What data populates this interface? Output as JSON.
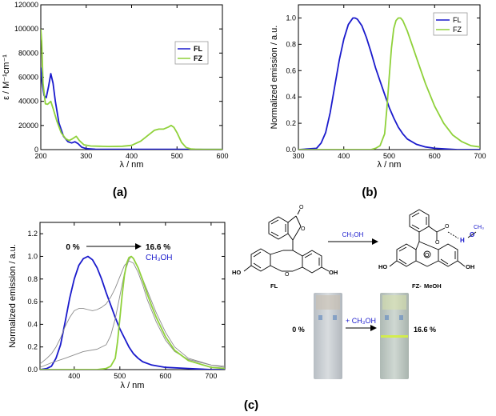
{
  "figure": {
    "panel_labels": [
      "(a)",
      "(b)",
      "(c)"
    ]
  },
  "colors": {
    "blue": "#1a1acc",
    "green": "#8fd13a",
    "gray": "#8c8c8c"
  },
  "chart_data": [
    {
      "type": "line",
      "panel": "(a)",
      "xlabel": "λ / nm",
      "ylabel": "ε / M⁻¹cm⁻¹",
      "xlim": [
        200,
        600
      ],
      "ylim": [
        0,
        120000
      ],
      "xticks": [
        200,
        300,
        400,
        500,
        600
      ],
      "yticks": [
        0,
        20000,
        40000,
        60000,
        80000,
        100000,
        120000
      ],
      "legend_position": "right-middle",
      "series": [
        {
          "name": "FL",
          "color": "#1a1acc",
          "x": [
            200,
            203,
            207,
            212,
            217,
            222,
            227,
            232,
            240,
            250,
            260,
            268,
            275,
            282,
            290,
            300,
            320,
            350,
            400,
            450,
            500,
            550,
            600
          ],
          "y": [
            68000,
            55000,
            45000,
            43000,
            52000,
            63000,
            55000,
            40000,
            22000,
            11000,
            6500,
            5500,
            6500,
            5000,
            2000,
            800,
            300,
            200,
            200,
            200,
            200,
            150,
            100
          ]
        },
        {
          "name": "FZ",
          "color": "#8fd13a",
          "x": [
            200,
            202,
            205,
            210,
            215,
            222,
            228,
            235,
            245,
            255,
            262,
            270,
            278,
            285,
            295,
            310,
            330,
            350,
            380,
            400,
            420,
            440,
            450,
            460,
            470,
            480,
            487,
            493,
            500,
            510,
            520,
            530,
            540,
            560,
            600
          ],
          "y": [
            100000,
            90000,
            55000,
            38000,
            37500,
            40000,
            33000,
            24000,
            14000,
            9000,
            7500,
            9000,
            11000,
            7500,
            4000,
            3000,
            2800,
            2600,
            2800,
            3500,
            7000,
            13000,
            16000,
            17000,
            17000,
            18500,
            20000,
            18500,
            14000,
            6000,
            1800,
            600,
            300,
            150,
            100
          ]
        }
      ]
    },
    {
      "type": "line",
      "panel": "(b)",
      "xlabel": "λ / nm",
      "ylabel": "Normalized emission / a.u.",
      "xlim": [
        300,
        700
      ],
      "ylim": [
        0,
        1.1
      ],
      "xticks": [
        300,
        400,
        500,
        600,
        700
      ],
      "yticks": [
        0.0,
        0.2,
        0.4,
        0.6,
        0.8,
        1.0
      ],
      "legend_position": "top-right",
      "series": [
        {
          "name": "FL",
          "color": "#1a1acc",
          "x": [
            300,
            340,
            350,
            360,
            370,
            380,
            390,
            400,
            410,
            420,
            425,
            430,
            440,
            450,
            460,
            470,
            480,
            490,
            500,
            510,
            520,
            530,
            540,
            560,
            580,
            600,
            650,
            700
          ],
          "y": [
            0.0,
            0.01,
            0.05,
            0.13,
            0.28,
            0.48,
            0.68,
            0.84,
            0.95,
            1.0,
            1.0,
            0.99,
            0.94,
            0.85,
            0.74,
            0.62,
            0.52,
            0.42,
            0.32,
            0.24,
            0.17,
            0.12,
            0.08,
            0.04,
            0.02,
            0.01,
            0.0,
            0.0
          ]
        },
        {
          "name": "FZ",
          "color": "#8fd13a",
          "x": [
            300,
            460,
            470,
            480,
            490,
            495,
            500,
            505,
            510,
            515,
            520,
            525,
            530,
            540,
            550,
            560,
            570,
            580,
            600,
            620,
            640,
            660,
            680,
            700
          ],
          "y": [
            0.0,
            0.0,
            0.01,
            0.03,
            0.12,
            0.32,
            0.55,
            0.77,
            0.92,
            0.98,
            1.0,
            1.0,
            0.98,
            0.9,
            0.8,
            0.7,
            0.6,
            0.5,
            0.33,
            0.2,
            0.11,
            0.06,
            0.03,
            0.02
          ]
        }
      ]
    },
    {
      "type": "line",
      "panel": "(c)",
      "xlabel": "λ / nm",
      "ylabel": "Normalized emission / a.u.",
      "xlim": [
        325,
        730
      ],
      "ylim": [
        0,
        1.3
      ],
      "xticks": [
        400,
        500,
        600,
        700
      ],
      "yticks": [
        0.0,
        0.2,
        0.4,
        0.6,
        0.8,
        1.0,
        1.2
      ],
      "annotation": {
        "start": "0 %",
        "end": "16.6 %",
        "solvent": "CH₃OH"
      },
      "series": [
        {
          "color": "#1a1acc",
          "x": [
            325,
            340,
            350,
            360,
            370,
            380,
            390,
            400,
            410,
            420,
            430,
            440,
            450,
            460,
            470,
            480,
            490,
            500,
            510,
            520,
            530,
            540,
            550,
            570,
            600,
            650,
            700,
            730
          ],
          "y": [
            0.0,
            0.01,
            0.03,
            0.1,
            0.22,
            0.42,
            0.63,
            0.8,
            0.92,
            0.98,
            1.0,
            0.97,
            0.9,
            0.8,
            0.68,
            0.57,
            0.46,
            0.36,
            0.28,
            0.2,
            0.14,
            0.1,
            0.07,
            0.04,
            0.02,
            0.01,
            0.0,
            0.0
          ]
        },
        {
          "color": "#8c8c8c",
          "x": [
            325,
            340,
            350,
            360,
            370,
            380,
            390,
            400,
            410,
            420,
            430,
            440,
            450,
            460,
            470,
            480,
            490,
            500,
            510,
            520,
            530,
            540,
            550,
            560,
            580,
            600,
            620,
            650,
            700,
            730
          ],
          "y": [
            0.05,
            0.1,
            0.14,
            0.2,
            0.28,
            0.38,
            0.46,
            0.52,
            0.54,
            0.54,
            0.53,
            0.52,
            0.53,
            0.55,
            0.58,
            0.64,
            0.72,
            0.82,
            0.92,
            0.96,
            0.94,
            0.86,
            0.75,
            0.62,
            0.42,
            0.26,
            0.16,
            0.09,
            0.04,
            0.03
          ]
        },
        {
          "color": "#8c8c8c",
          "x": [
            325,
            350,
            380,
            420,
            450,
            470,
            480,
            490,
            500,
            510,
            520,
            525,
            530,
            540,
            560,
            580,
            600,
            620,
            650,
            700,
            730
          ],
          "y": [
            0.02,
            0.06,
            0.1,
            0.16,
            0.18,
            0.22,
            0.3,
            0.45,
            0.65,
            0.85,
            0.97,
            1.0,
            0.98,
            0.9,
            0.7,
            0.5,
            0.33,
            0.2,
            0.1,
            0.04,
            0.02
          ]
        },
        {
          "color": "#8fd13a",
          "x": [
            325,
            450,
            470,
            480,
            490,
            495,
            500,
            505,
            510,
            515,
            520,
            525,
            530,
            540,
            550,
            560,
            570,
            580,
            600,
            620,
            650,
            700,
            730
          ],
          "y": [
            0.0,
            0.0,
            0.01,
            0.03,
            0.1,
            0.25,
            0.45,
            0.66,
            0.83,
            0.94,
            0.99,
            1.0,
            0.98,
            0.9,
            0.79,
            0.67,
            0.56,
            0.46,
            0.29,
            0.17,
            0.08,
            0.02,
            0.01
          ]
        }
      ]
    }
  ],
  "scheme": {
    "arrow_reagent": "CH₃OH",
    "left_name": "FL",
    "right_name_a": "FZ-",
    "right_name_b": "MeOH",
    "left_ho": "HO",
    "left_oh": "OH",
    "right_ho": "HO",
    "right_oh": "OH",
    "carbonyl_o": "O",
    "ring_o": "O",
    "xanthene_o_left": "O",
    "xanthene_o_right": "O",
    "hbond_h": "H",
    "hbond_o": "O",
    "methyl": "CH₃",
    "vial_left_label": "0 %",
    "vial_arrow_label": "+ CH₃OH",
    "vial_right_label": "16.6 %"
  }
}
